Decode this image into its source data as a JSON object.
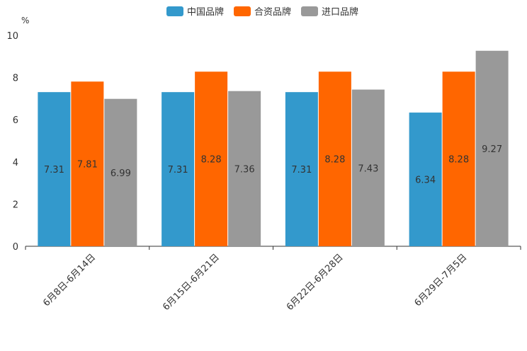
{
  "chart_data": {
    "type": "bar",
    "unit": "%",
    "categories": [
      "6月8日-6月14日",
      "6月15日-6月21日",
      "6月22日-6月28日",
      "6月29日-7月5日"
    ],
    "series": [
      {
        "name": "中国品牌",
        "color": "#3399cc",
        "values": [
          7.31,
          7.31,
          7.31,
          6.34
        ]
      },
      {
        "name": "合资品牌",
        "color": "#ff6600",
        "values": [
          7.81,
          8.28,
          8.28,
          8.28
        ]
      },
      {
        "name": "进口品牌",
        "color": "#999999",
        "values": [
          6.99,
          7.36,
          7.43,
          9.27
        ]
      }
    ],
    "yticks": [
      0,
      2,
      4,
      6,
      8,
      10
    ],
    "ylim": [
      0,
      10
    ],
    "legend_position": "top-center"
  }
}
